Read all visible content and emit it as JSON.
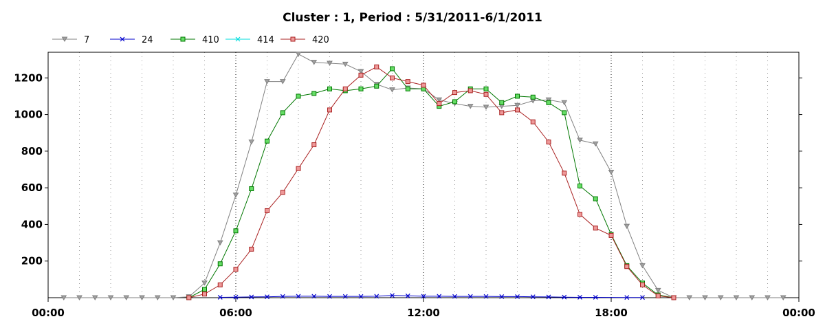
{
  "chart_data": {
    "type": "line",
    "title": "Cluster : 1, Period : 5/31/2011-6/1/2011",
    "xlabel": "",
    "ylabel": "",
    "xlim": [
      "00:00",
      "24:00"
    ],
    "ylim": [
      0,
      1340
    ],
    "x_ticks": [
      "00:00",
      "06:00",
      "12:00",
      "18:00",
      "00:00"
    ],
    "y_ticks": [
      200,
      400,
      600,
      800,
      1000,
      1200
    ],
    "grid": true,
    "legend_position": "top-left",
    "series": [
      {
        "name": "7",
        "color": "#808080",
        "marker": "triangle-down-icon",
        "points": [
          [
            "00:30",
            0
          ],
          [
            "01:00",
            0
          ],
          [
            "01:30",
            0
          ],
          [
            "02:00",
            0
          ],
          [
            "02:30",
            0
          ],
          [
            "03:00",
            0
          ],
          [
            "03:30",
            0
          ],
          [
            "04:00",
            0
          ],
          [
            "04:30",
            5
          ],
          [
            "05:00",
            80
          ],
          [
            "05:30",
            300
          ],
          [
            "06:00",
            560
          ],
          [
            "06:30",
            850
          ],
          [
            "07:00",
            1180
          ],
          [
            "07:30",
            1180
          ],
          [
            "08:00",
            1330
          ],
          [
            "08:30",
            1285
          ],
          [
            "09:00",
            1280
          ],
          [
            "09:30",
            1275
          ],
          [
            "10:00",
            1235
          ],
          [
            "10:30",
            1165
          ],
          [
            "11:00",
            1135
          ],
          [
            "11:30",
            1145
          ],
          [
            "12:00",
            1140
          ],
          [
            "12:30",
            1080
          ],
          [
            "13:00",
            1060
          ],
          [
            "13:30",
            1045
          ],
          [
            "14:00",
            1040
          ],
          [
            "14:30",
            1045
          ],
          [
            "15:00",
            1050
          ],
          [
            "15:30",
            1075
          ],
          [
            "16:00",
            1080
          ],
          [
            "16:30",
            1065
          ],
          [
            "17:00",
            860
          ],
          [
            "17:30",
            840
          ],
          [
            "18:00",
            685
          ],
          [
            "18:30",
            390
          ],
          [
            "19:00",
            175
          ],
          [
            "19:30",
            40
          ],
          [
            "20:00",
            0
          ],
          [
            "20:30",
            0
          ],
          [
            "21:00",
            0
          ],
          [
            "21:30",
            0
          ],
          [
            "22:00",
            0
          ],
          [
            "22:30",
            0
          ],
          [
            "23:00",
            0
          ],
          [
            "23:30",
            0
          ]
        ]
      },
      {
        "name": "24",
        "color": "#0000cc",
        "marker": "x-icon",
        "points": [
          [
            "05:30",
            2
          ],
          [
            "06:00",
            3
          ],
          [
            "06:30",
            4
          ],
          [
            "07:00",
            5
          ],
          [
            "07:30",
            7
          ],
          [
            "08:00",
            8
          ],
          [
            "08:30",
            8
          ],
          [
            "09:00",
            7
          ],
          [
            "09:30",
            7
          ],
          [
            "10:00",
            7
          ],
          [
            "10:30",
            8
          ],
          [
            "11:00",
            12
          ],
          [
            "11:30",
            10
          ],
          [
            "12:00",
            8
          ],
          [
            "12:30",
            8
          ],
          [
            "13:00",
            7
          ],
          [
            "13:30",
            7
          ],
          [
            "14:00",
            7
          ],
          [
            "14:30",
            6
          ],
          [
            "15:00",
            6
          ],
          [
            "15:30",
            5
          ],
          [
            "16:00",
            4
          ],
          [
            "16:30",
            3
          ],
          [
            "17:00",
            2
          ],
          [
            "17:30",
            2
          ],
          [
            "18:30",
            1
          ],
          [
            "19:00",
            1
          ]
        ]
      },
      {
        "name": "410",
        "color": "#007700",
        "marker_fill": "#66dd66",
        "marker": "square-icon",
        "points": [
          [
            "04:30",
            0
          ],
          [
            "05:00",
            45
          ],
          [
            "05:30",
            185
          ],
          [
            "06:00",
            365
          ],
          [
            "06:30",
            595
          ],
          [
            "07:00",
            855
          ],
          [
            "07:30",
            1010
          ],
          [
            "08:00",
            1100
          ],
          [
            "08:30",
            1115
          ],
          [
            "09:00",
            1140
          ],
          [
            "09:30",
            1130
          ],
          [
            "10:00",
            1140
          ],
          [
            "10:30",
            1155
          ],
          [
            "11:00",
            1250
          ],
          [
            "11:30",
            1140
          ],
          [
            "12:00",
            1140
          ],
          [
            "12:30",
            1045
          ],
          [
            "13:00",
            1070
          ],
          [
            "13:30",
            1140
          ],
          [
            "14:00",
            1140
          ],
          [
            "14:30",
            1065
          ],
          [
            "15:00",
            1100
          ],
          [
            "15:30",
            1095
          ],
          [
            "16:00",
            1065
          ],
          [
            "16:30",
            1010
          ],
          [
            "17:00",
            610
          ],
          [
            "17:30",
            540
          ],
          [
            "18:00",
            345
          ],
          [
            "18:30",
            175
          ],
          [
            "19:00",
            80
          ],
          [
            "19:30",
            15
          ],
          [
            "20:00",
            0
          ]
        ]
      },
      {
        "name": "414",
        "color": "#00dddd",
        "marker": "x-icon",
        "points": []
      },
      {
        "name": "420",
        "color": "#aa2222",
        "marker_fill": "#ee9999",
        "marker": "square-icon",
        "points": [
          [
            "04:30",
            0
          ],
          [
            "05:00",
            20
          ],
          [
            "05:30",
            70
          ],
          [
            "06:00",
            155
          ],
          [
            "06:30",
            265
          ],
          [
            "07:00",
            475
          ],
          [
            "07:30",
            575
          ],
          [
            "08:00",
            705
          ],
          [
            "08:30",
            835
          ],
          [
            "09:00",
            1025
          ],
          [
            "09:30",
            1140
          ],
          [
            "10:00",
            1215
          ],
          [
            "10:30",
            1260
          ],
          [
            "11:00",
            1200
          ],
          [
            "11:30",
            1180
          ],
          [
            "12:00",
            1160
          ],
          [
            "12:30",
            1060
          ],
          [
            "13:00",
            1120
          ],
          [
            "13:30",
            1130
          ],
          [
            "14:00",
            1110
          ],
          [
            "14:30",
            1010
          ],
          [
            "15:00",
            1025
          ],
          [
            "15:30",
            960
          ],
          [
            "16:00",
            850
          ],
          [
            "16:30",
            680
          ],
          [
            "17:00",
            455
          ],
          [
            "17:30",
            380
          ],
          [
            "18:00",
            340
          ],
          [
            "18:30",
            170
          ],
          [
            "19:00",
            70
          ],
          [
            "19:30",
            10
          ],
          [
            "20:00",
            0
          ]
        ]
      }
    ]
  }
}
